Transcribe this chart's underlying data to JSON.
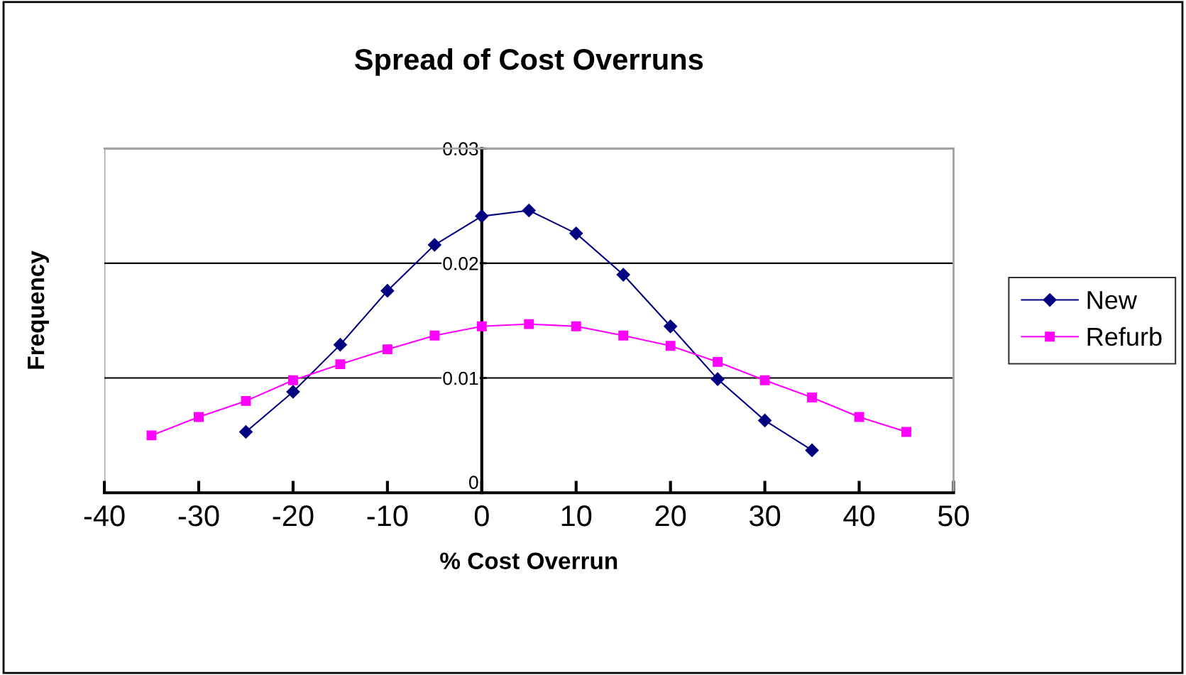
{
  "chart_data": {
    "type": "line",
    "title": "Spread of Cost Overruns",
    "xlabel": "% Cost Overrun",
    "ylabel": "Frequency",
    "x": [
      -35,
      -30,
      -25,
      -20,
      -15,
      -10,
      -5,
      0,
      5,
      10,
      15,
      20,
      25,
      30,
      35,
      40,
      45
    ],
    "series": [
      {
        "name": "New",
        "color": "#000080",
        "marker": "diamond",
        "x": [
          -25,
          -20,
          -15,
          -10,
          -5,
          0,
          5,
          10,
          15,
          20,
          25,
          30,
          35
        ],
        "values": [
          0.0053,
          0.0088,
          0.0129,
          0.0176,
          0.0216,
          0.0241,
          0.0246,
          0.0226,
          0.019,
          0.0145,
          0.0099,
          0.0063,
          0.0037
        ]
      },
      {
        "name": "Refurb",
        "color": "#ff00ff",
        "marker": "square",
        "values": [
          0.005,
          0.0066,
          0.008,
          0.0098,
          0.0112,
          0.0125,
          0.0137,
          0.0145,
          0.0147,
          0.0145,
          0.0137,
          0.0128,
          0.0114,
          0.0098,
          0.0083,
          0.0066,
          0.0053
        ]
      }
    ],
    "xlim": [
      -40,
      50
    ],
    "xticks": [
      -40,
      -30,
      -20,
      -10,
      0,
      10,
      20,
      30,
      40,
      50
    ],
    "ylim": [
      0,
      0.03
    ],
    "yticks": [
      0,
      0.01,
      0.02,
      0.03
    ],
    "grid": "y",
    "legend": "right",
    "line_style": "solid"
  }
}
